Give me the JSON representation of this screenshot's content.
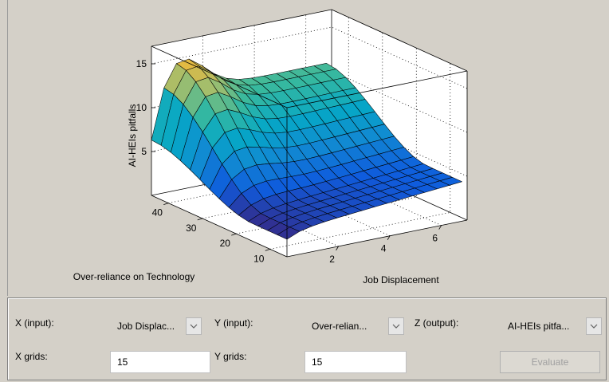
{
  "chart_data": {
    "type": "surface",
    "xlabel": "Job Displacement",
    "ylabel": "Over-reliance on Technology",
    "zlabel": "AI-HEIs pitfalls",
    "xlim": [
      0,
      7
    ],
    "ylim": [
      5,
      45
    ],
    "zlim": [
      0,
      17
    ],
    "x_ticks": [
      2,
      4,
      6
    ],
    "y_ticks": [
      10,
      20,
      30,
      40
    ],
    "z_ticks": [
      5,
      10,
      15
    ],
    "grid": true,
    "colormap": "parula",
    "grid_points": 15
  },
  "controls": {
    "x_input_label": "X (input):",
    "x_input_value": "Job Displac...",
    "y_input_label": "Y (input):",
    "y_input_value": "Over-relian...",
    "z_output_label": "Z (output):",
    "z_output_value": "AI-HEIs pitfa...",
    "x_grids_label": "X grids:",
    "x_grids_value": "15",
    "y_grids_label": "Y grids:",
    "y_grids_value": "15",
    "evaluate_label": "Evaluate",
    "arrow_icon": "chevron-down-icon"
  }
}
